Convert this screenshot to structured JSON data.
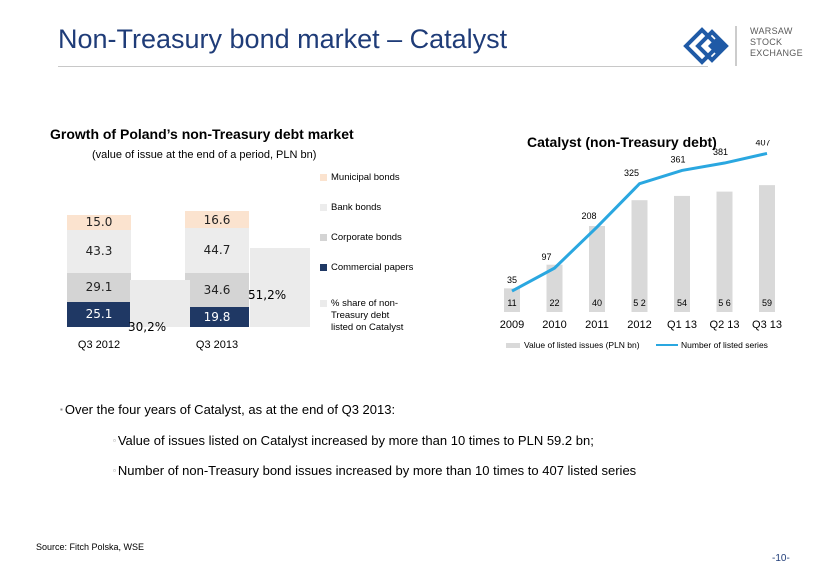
{
  "title": "Non-Treasury bond market – Catalyst",
  "logo": {
    "lines": [
      "WARSAW",
      "STOCK",
      "EXCHANGE"
    ],
    "icon": "wse-logo-icon",
    "color": "#1f5aa6"
  },
  "left_chart": {
    "title": "Growth of Poland’s non-Treasury debt market",
    "subtitle": "(value of issue at the end of a period, PLN bn)"
  },
  "right_chart": {
    "title": "Catalyst (non-Treasury debt)"
  },
  "chart_data": [
    {
      "type": "bar",
      "stacked": true,
      "title": "Growth of Poland’s non-Treasury debt market",
      "subtitle": "(value of issue at the end of a period, PLN bn)",
      "categories": [
        "Q3 2012",
        "Q3 2013"
      ],
      "series": [
        {
          "name": "Commercial papers",
          "values": [
            25.1,
            19.8
          ],
          "color": "#1f3864"
        },
        {
          "name": "Corporate bonds",
          "values": [
            29.1,
            34.6
          ],
          "color": "#d4d4d4"
        },
        {
          "name": "Bank bonds",
          "values": [
            43.3,
            44.7
          ],
          "color": "#ececec"
        },
        {
          "name": "Municipal bonds",
          "values": [
            15.0,
            16.6
          ],
          "color": "#fbe3cf"
        },
        {
          "name": "% share of non-Treasury debt listed on Catalyst",
          "values": [
            30.2,
            51.2
          ],
          "labels": [
            "30,2%",
            "51,2%"
          ],
          "color": "#ebebeb"
        }
      ],
      "legend": "right"
    },
    {
      "type": "bar+line",
      "title": "Catalyst (non-Treasury debt)",
      "categories": [
        "2009",
        "2010",
        "2011",
        "2012",
        "Q1 13",
        "Q2 13",
        "Q3 13"
      ],
      "series": [
        {
          "name": "Value of listed issues (PLN bn)",
          "type": "bar",
          "values": [
            11,
            22,
            40,
            52,
            54,
            56,
            59
          ],
          "labels": [
            "11",
            "22",
            "40",
            "5 2",
            "54",
            "5 6",
            "59"
          ],
          "color": "#d9d9d9"
        },
        {
          "name": "Number of listed series",
          "type": "line",
          "values": [
            35,
            97,
            208,
            325,
            361,
            381,
            407
          ],
          "color": "#2aa7e0"
        }
      ],
      "legend": "bottom"
    }
  ],
  "bullets": [
    "Over the four years of Catalyst, as at the end of Q3 2013:",
    "Value of issues listed on Catalyst increased by more than 10 times to PLN 59.2 bn;",
    "Number of non-Treasury bond issues increased by more than 10 times to 407 listed series"
  ],
  "source": "Source: Fitch Polska, WSE",
  "page_number": "-10-"
}
